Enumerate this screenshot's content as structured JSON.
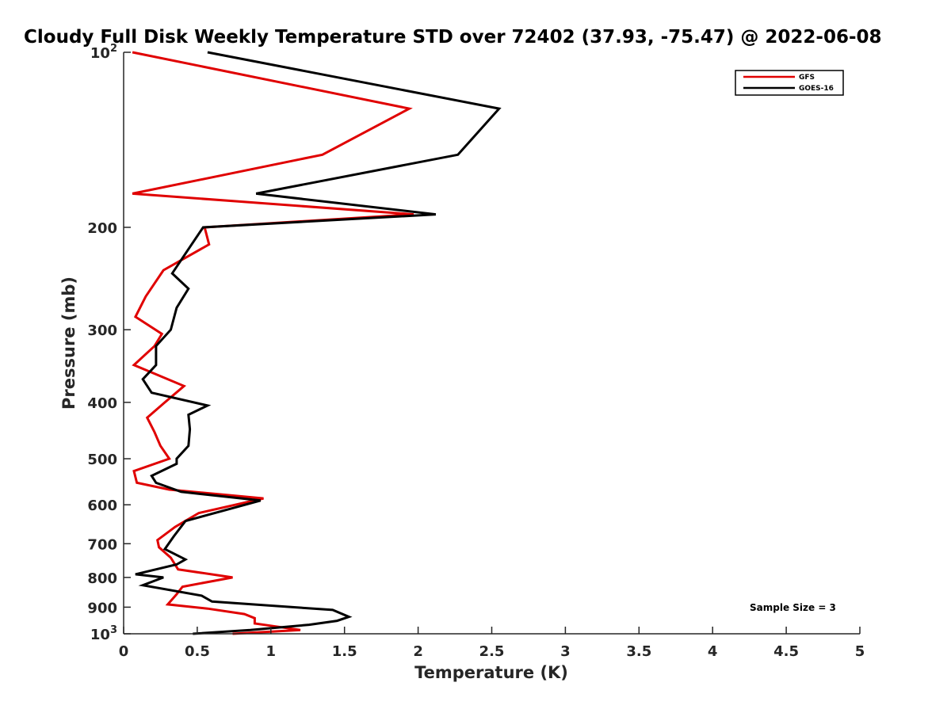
{
  "chart_data": {
    "type": "line",
    "title": "Cloudy Full Disk Weekly Temperature STD over 72402 (37.93, -75.47) @ 2022-06-08",
    "xlabel": "Temperature (K)",
    "ylabel": "Pressure (mb)",
    "xlim": [
      0,
      5
    ],
    "ylim": [
      100,
      1000
    ],
    "y_scale": "log",
    "y_reversed": true,
    "grid": false,
    "legend_position": "top-right",
    "x_ticks": [
      "0",
      "0.5",
      "1",
      "1.5",
      "2",
      "2.5",
      "3",
      "3.5",
      "4",
      "4.5",
      "5"
    ],
    "y_ticks": [
      {
        "value": 100,
        "base": "10",
        "exp": "2"
      },
      {
        "value": 200,
        "label": "200"
      },
      {
        "value": 300,
        "label": "300"
      },
      {
        "value": 400,
        "label": "400"
      },
      {
        "value": 500,
        "label": "500"
      },
      {
        "value": 600,
        "label": "600"
      },
      {
        "value": 700,
        "label": "700"
      },
      {
        "value": 800,
        "label": "800"
      },
      {
        "value": 900,
        "label": "900"
      },
      {
        "value": 1000,
        "base": "10",
        "exp": "3"
      }
    ],
    "annotation": "Sample Size = 3",
    "series": [
      {
        "name": "GFS",
        "color": "#e00000",
        "points": [
          [
            0.06,
            100
          ],
          [
            1.94,
            125
          ],
          [
            1.35,
            150
          ],
          [
            0.06,
            175
          ],
          [
            1.97,
            190
          ],
          [
            0.55,
            200
          ],
          [
            0.58,
            214
          ],
          [
            0.27,
            237
          ],
          [
            0.15,
            263
          ],
          [
            0.08,
            285
          ],
          [
            0.26,
            305
          ],
          [
            0.21,
            320
          ],
          [
            0.07,
            345
          ],
          [
            0.41,
            375
          ],
          [
            0.28,
            400
          ],
          [
            0.16,
            425
          ],
          [
            0.21,
            450
          ],
          [
            0.25,
            475
          ],
          [
            0.31,
            500
          ],
          [
            0.07,
            525
          ],
          [
            0.09,
            550
          ],
          [
            0.31,
            565
          ],
          [
            0.95,
            585
          ],
          [
            0.51,
            620
          ],
          [
            0.35,
            655
          ],
          [
            0.23,
            690
          ],
          [
            0.24,
            710
          ],
          [
            0.32,
            740
          ],
          [
            0.37,
            775
          ],
          [
            0.74,
            800
          ],
          [
            0.4,
            830
          ],
          [
            0.36,
            855
          ],
          [
            0.3,
            890
          ],
          [
            0.57,
            905
          ],
          [
            0.82,
            925
          ],
          [
            0.89,
            940
          ],
          [
            0.89,
            960
          ],
          [
            1.2,
            985
          ],
          [
            0.74,
            1000
          ]
        ]
      },
      {
        "name": "GOES-16",
        "color": "#000000",
        "points": [
          [
            0.57,
            100
          ],
          [
            2.55,
            125
          ],
          [
            2.27,
            150
          ],
          [
            0.9,
            175
          ],
          [
            2.12,
            190
          ],
          [
            0.54,
            200
          ],
          [
            0.43,
            220
          ],
          [
            0.33,
            240
          ],
          [
            0.44,
            255
          ],
          [
            0.36,
            275
          ],
          [
            0.32,
            300
          ],
          [
            0.22,
            320
          ],
          [
            0.22,
            345
          ],
          [
            0.13,
            365
          ],
          [
            0.19,
            385
          ],
          [
            0.57,
            405
          ],
          [
            0.44,
            420
          ],
          [
            0.45,
            445
          ],
          [
            0.44,
            475
          ],
          [
            0.36,
            500
          ],
          [
            0.36,
            510
          ],
          [
            0.19,
            535
          ],
          [
            0.22,
            550
          ],
          [
            0.39,
            570
          ],
          [
            0.93,
            590
          ],
          [
            0.42,
            640
          ],
          [
            0.34,
            680
          ],
          [
            0.28,
            715
          ],
          [
            0.42,
            745
          ],
          [
            0.36,
            760
          ],
          [
            0.08,
            790
          ],
          [
            0.27,
            800
          ],
          [
            0.13,
            825
          ],
          [
            0.53,
            860
          ],
          [
            0.6,
            880
          ],
          [
            1.42,
            910
          ],
          [
            1.53,
            935
          ],
          [
            1.45,
            950
          ],
          [
            1.26,
            965
          ],
          [
            0.86,
            985
          ],
          [
            0.47,
            1000
          ]
        ]
      }
    ]
  }
}
